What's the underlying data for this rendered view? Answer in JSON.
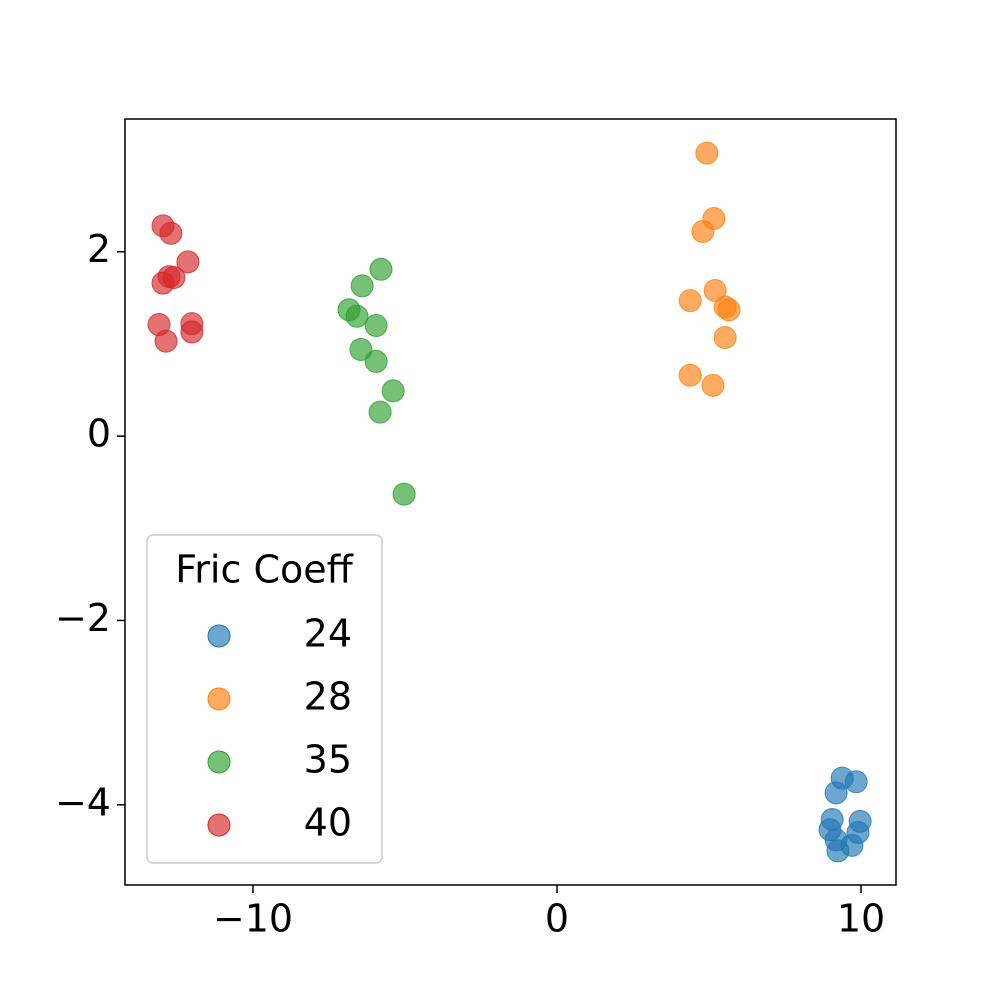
{
  "chart_data": {
    "type": "scatter",
    "legend_title": "Fric Coeff",
    "legend_position": "lower left",
    "xlim": [
      -14.21,
      11.15
    ],
    "ylim": [
      -4.87,
      3.44
    ],
    "xticks": [
      {
        "value": -10,
        "label": "−10"
      },
      0,
      10
    ],
    "yticks": [
      {
        "value": -4,
        "label": "−4"
      },
      {
        "value": -2,
        "label": "−2"
      },
      0,
      2
    ],
    "series": [
      {
        "name": "24",
        "color": "#1f77b4",
        "x": [
          9.38,
          9.84,
          9.18,
          9.05,
          9.97,
          8.98,
          9.9,
          9.18,
          9.7,
          9.24
        ],
        "values": [
          -3.71,
          -3.75,
          -3.87,
          -4.16,
          -4.18,
          -4.27,
          -4.3,
          -4.38,
          -4.44,
          -4.5
        ]
      },
      {
        "name": "28",
        "color": "#ff7f0e",
        "x": [
          4.93,
          5.16,
          4.8,
          4.38,
          5.2,
          5.53,
          5.66,
          5.53,
          4.38,
          5.13
        ],
        "values": [
          3.07,
          2.36,
          2.22,
          1.47,
          1.58,
          1.4,
          1.37,
          1.07,
          0.66,
          0.55
        ]
      },
      {
        "name": "35",
        "color": "#2ca02c",
        "x": [
          -5.79,
          -6.41,
          -6.84,
          -6.58,
          -5.95,
          -6.45,
          -5.95,
          -5.39,
          -5.82,
          -5.03
        ],
        "values": [
          1.81,
          1.63,
          1.37,
          1.3,
          1.2,
          0.94,
          0.81,
          0.49,
          0.26,
          -0.63
        ]
      },
      {
        "name": "40",
        "color": "#d62728",
        "x": [
          -12.96,
          -12.7,
          -12.14,
          -12.76,
          -12.6,
          -12.96,
          -13.09,
          -12.01,
          -12.01,
          -12.86
        ],
        "values": [
          2.28,
          2.2,
          1.89,
          1.73,
          1.72,
          1.66,
          1.21,
          1.22,
          1.13,
          1.03
        ]
      }
    ]
  }
}
